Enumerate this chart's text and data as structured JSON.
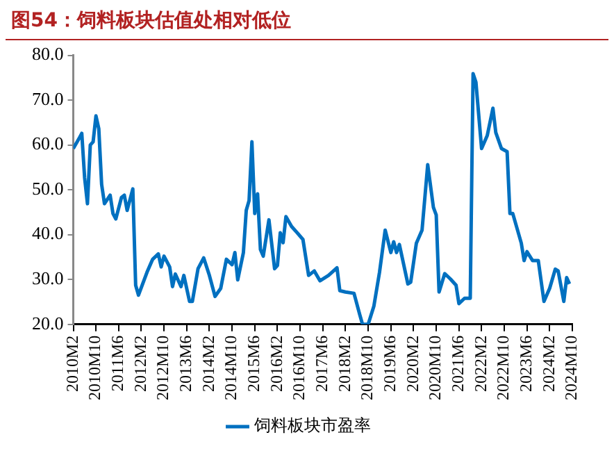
{
  "chart_data": {
    "type": "line",
    "title": "图54：饲料板块估值处相对低位",
    "x": [
      "2010-02",
      "2010-04",
      "2010-05",
      "2010-06",
      "2010-07",
      "2010-08",
      "2010-09",
      "2010-10",
      "2010-11",
      "2010-12",
      "2011-01",
      "2011-03",
      "2011-04",
      "2011-05",
      "2011-07",
      "2011-08",
      "2011-09",
      "2011-11",
      "2011-12",
      "2012-01",
      "2012-04",
      "2012-06",
      "2012-08",
      "2012-09",
      "2012-10",
      "2012-12",
      "2013-01",
      "2013-02",
      "2013-04",
      "2013-05",
      "2013-07",
      "2013-08",
      "2013-10",
      "2013-12",
      "2014-02",
      "2014-04",
      "2014-06",
      "2014-08",
      "2014-10",
      "2014-11",
      "2014-12",
      "2015-02",
      "2015-03",
      "2015-04",
      "2015-05",
      "2015-06",
      "2015-07",
      "2015-08",
      "2015-09",
      "2015-11",
      "2016-01",
      "2016-02",
      "2016-03",
      "2016-04",
      "2016-05",
      "2016-07",
      "2016-09",
      "2016-11",
      "2017-01",
      "2017-03",
      "2017-05",
      "2017-08",
      "2017-11",
      "2017-12",
      "2018-02",
      "2018-05",
      "2018-07",
      "2018-08",
      "2018-10",
      "2018-12",
      "2019-02",
      "2019-04",
      "2019-06",
      "2019-07",
      "2019-08",
      "2019-09",
      "2019-12",
      "2020-01",
      "2020-03",
      "2020-05",
      "2020-06",
      "2020-07",
      "2020-09",
      "2020-10",
      "2020-11",
      "2021-01",
      "2021-03",
      "2021-05",
      "2021-06",
      "2021-08",
      "2021-10",
      "2021-11",
      "2021-12",
      "2022-02",
      "2022-04",
      "2022-06",
      "2022-07",
      "2022-09",
      "2022-11",
      "2022-12",
      "2023-01",
      "2023-04",
      "2023-05",
      "2023-06",
      "2023-08",
      "2023-10",
      "2023-12",
      "2024-02",
      "2024-04",
      "2024-05",
      "2024-07",
      "2024-08",
      "2024-09"
    ],
    "series": [
      {
        "name": "饲料板块市盈率",
        "color": "#0070c0",
        "values": [
          59.2,
          61.4,
          62.6,
          52.7,
          46.9,
          60.0,
          60.7,
          66.5,
          63.6,
          51.2,
          46.9,
          48.8,
          44.7,
          43.5,
          48.3,
          48.8,
          45.4,
          50.2,
          28.7,
          26.5,
          31.6,
          34.5,
          35.7,
          32.8,
          35.2,
          32.8,
          28.4,
          31.2,
          28.4,
          30.9,
          25.1,
          25.1,
          32.4,
          34.8,
          30.9,
          26.2,
          28.0,
          34.5,
          33.3,
          36.0,
          29.9,
          36.0,
          45.4,
          47.6,
          60.7,
          44.7,
          49.1,
          36.7,
          35.2,
          43.3,
          32.4,
          33.1,
          40.4,
          38.2,
          44.0,
          41.8,
          40.4,
          38.9,
          30.9,
          31.9,
          29.7,
          30.9,
          32.6,
          27.5,
          27.2,
          26.9,
          22.2,
          20.0,
          20.0,
          24.0,
          31.6,
          41.0,
          36.0,
          38.4,
          36.0,
          37.8,
          29.0,
          29.4,
          38.1,
          41.0,
          48.3,
          55.6,
          46.1,
          44.4,
          27.2,
          31.3,
          30.1,
          28.7,
          24.6,
          25.8,
          25.8,
          75.9,
          74.0,
          59.2,
          62.1,
          68.2,
          62.8,
          59.2,
          58.5,
          44.7,
          44.7,
          38.1,
          34.2,
          36.2,
          34.2,
          34.2,
          25.1,
          28.0,
          32.3,
          31.9,
          25.1,
          30.4,
          29.0
        ]
      }
    ],
    "xlim": [
      "2010-02",
      "2024-10"
    ],
    "xticks": [
      {
        "value": "2010-02",
        "label": "2010M2"
      },
      {
        "value": "2010-10",
        "label": "2010M10"
      },
      {
        "value": "2011-06",
        "label": "2011M6"
      },
      {
        "value": "2012-02",
        "label": "2012M2"
      },
      {
        "value": "2012-10",
        "label": "2012M10"
      },
      {
        "value": "2013-06",
        "label": "2013M6"
      },
      {
        "value": "2014-02",
        "label": "2014M2"
      },
      {
        "value": "2014-10",
        "label": "2014M10"
      },
      {
        "value": "2015-06",
        "label": "2015M6"
      },
      {
        "value": "2016-02",
        "label": "2016M2"
      },
      {
        "value": "2016-10",
        "label": "2016M10"
      },
      {
        "value": "2017-06",
        "label": "2017M6"
      },
      {
        "value": "2018-02",
        "label": "2018M2"
      },
      {
        "value": "2018-10",
        "label": "2018M10"
      },
      {
        "value": "2019-06",
        "label": "2019M6"
      },
      {
        "value": "2020-02",
        "label": "2020M2"
      },
      {
        "value": "2020-10",
        "label": "2020M10"
      },
      {
        "value": "2021-06",
        "label": "2021M6"
      },
      {
        "value": "2022-02",
        "label": "2022M2"
      },
      {
        "value": "2022-10",
        "label": "2022M10"
      },
      {
        "value": "2023-06",
        "label": "2023M6"
      },
      {
        "value": "2024-02",
        "label": "2024M2"
      },
      {
        "value": "2024-10",
        "label": "2024M10"
      }
    ],
    "ylim": [
      20,
      80
    ],
    "yticks": [
      {
        "value": 20,
        "label": "20.0"
      },
      {
        "value": 30,
        "label": "30.0"
      },
      {
        "value": 40,
        "label": "40.0"
      },
      {
        "value": 50,
        "label": "50.0"
      },
      {
        "value": 60,
        "label": "60.0"
      },
      {
        "value": 70,
        "label": "70.0"
      },
      {
        "value": 80,
        "label": "80.0"
      }
    ],
    "legend": "bottom",
    "grid": false,
    "marker": "none",
    "line_style": "solid"
  }
}
